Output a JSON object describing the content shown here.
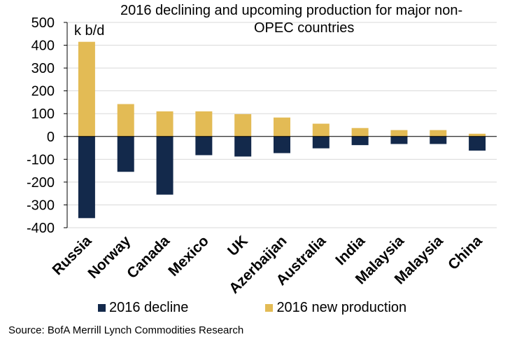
{
  "chart_data": {
    "type": "bar",
    "stacked": true,
    "title_lines": [
      "2016 declining and upcoming production for major non-",
      "OPEC countries"
    ],
    "ylabel": "k b/d",
    "ylim": [
      -400,
      500
    ],
    "yticks": [
      500,
      400,
      300,
      200,
      100,
      0,
      -100,
      -200,
      -300,
      -400
    ],
    "ytick_labels": [
      "500",
      "400",
      "300",
      "200",
      "100",
      "0",
      "-100",
      "-200",
      "-300",
      "-400"
    ],
    "grid": true,
    "categories": [
      "Russia",
      "Norway",
      "Canada",
      "Mexico",
      "UK",
      "Azerbaijan",
      "Australia",
      "India",
      "Malaysia",
      "Malaysia",
      "China"
    ],
    "series": [
      {
        "name": "2016 decline",
        "color": "#13294b",
        "values": [
          -358,
          -155,
          -255,
          -82,
          -88,
          -73,
          -52,
          -38,
          -33,
          -33,
          -62
        ]
      },
      {
        "name": "2016 new production",
        "color": "#e3bb55",
        "values": [
          415,
          142,
          110,
          110,
          98,
          83,
          56,
          37,
          28,
          28,
          12
        ]
      }
    ],
    "legend_position": "bottom"
  },
  "source": "Source: BofA Merrill Lynch Commodities Research"
}
